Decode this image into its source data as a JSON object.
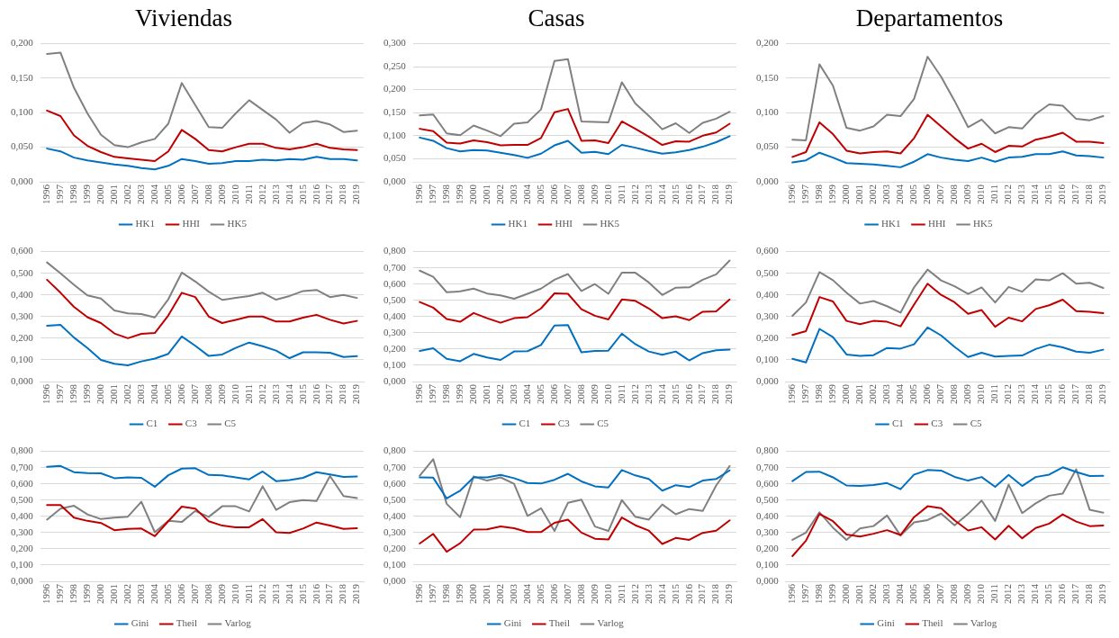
{
  "chart_data": [
    {
      "type": "line",
      "title": "Viviendas",
      "categories": [
        "1996",
        "1997",
        "1998",
        "1999",
        "2000",
        "2001",
        "2002",
        "2003",
        "2004",
        "2005",
        "2006",
        "2007",
        "2008",
        "2009",
        "2010",
        "2011",
        "2012",
        "2013",
        "2014",
        "2015",
        "2016",
        "2017",
        "2018",
        "2019"
      ],
      "ylim": [
        0,
        0.2
      ],
      "yticks": [
        {
          "value": 0,
          "label": "0,000"
        },
        {
          "value": 0.05,
          "label": "0,050"
        },
        {
          "value": 0.1,
          "label": "0,100"
        },
        {
          "value": 0.15,
          "label": "0,150"
        },
        {
          "value": 0.2,
          "label": "0,200"
        }
      ],
      "grid": "y",
      "legend": "bottom",
      "marker": "none",
      "series": [
        {
          "name": "HK1",
          "color": "#0070c0",
          "values": [
            0.048,
            0.044,
            0.035,
            0.031,
            0.028,
            0.025,
            0.023,
            0.02,
            0.018,
            0.023,
            0.033,
            0.03,
            0.026,
            0.027,
            0.03,
            0.03,
            0.032,
            0.031,
            0.033,
            0.032,
            0.036,
            0.033,
            0.033,
            0.031
          ]
        },
        {
          "name": "HHI",
          "color": "#c00000",
          "values": [
            0.103,
            0.095,
            0.067,
            0.052,
            0.043,
            0.036,
            0.034,
            0.032,
            0.03,
            0.044,
            0.075,
            0.062,
            0.046,
            0.044,
            0.05,
            0.055,
            0.055,
            0.049,
            0.047,
            0.05,
            0.055,
            0.049,
            0.047,
            0.046
          ]
        },
        {
          "name": "HK5",
          "color": "#808080",
          "values": [
            0.185,
            0.187,
            0.136,
            0.099,
            0.068,
            0.053,
            0.05,
            0.057,
            0.062,
            0.084,
            0.143,
            0.111,
            0.079,
            0.078,
            0.099,
            0.118,
            0.104,
            0.09,
            0.071,
            0.085,
            0.088,
            0.083,
            0.072,
            0.074
          ]
        }
      ]
    },
    {
      "type": "line",
      "title": "Casas",
      "categories": [
        "1996",
        "1997",
        "1998",
        "1999",
        "2000",
        "2001",
        "2002",
        "2003",
        "2004",
        "2005",
        "2006",
        "2007",
        "2008",
        "2009",
        "2010",
        "2011",
        "2012",
        "2013",
        "2014",
        "2015",
        "2016",
        "2017",
        "2018",
        "2019"
      ],
      "ylim": [
        0,
        0.3
      ],
      "yticks": [
        {
          "value": 0,
          "label": "0,000"
        },
        {
          "value": 0.05,
          "label": "0,050"
        },
        {
          "value": 0.1,
          "label": "0,100"
        },
        {
          "value": 0.15,
          "label": "0,150"
        },
        {
          "value": 0.2,
          "label": "0,200"
        },
        {
          "value": 0.25,
          "label": "0,250"
        },
        {
          "value": 0.3,
          "label": "0,300"
        }
      ],
      "grid": "y",
      "legend": "bottom",
      "marker": "none",
      "series": [
        {
          "name": "HK1",
          "color": "#0070c0",
          "values": [
            0.096,
            0.089,
            0.073,
            0.066,
            0.069,
            0.068,
            0.063,
            0.058,
            0.052,
            0.061,
            0.079,
            0.089,
            0.063,
            0.065,
            0.06,
            0.08,
            0.074,
            0.067,
            0.061,
            0.064,
            0.069,
            0.076,
            0.086,
            0.099
          ]
        },
        {
          "name": "HHI",
          "color": "#c00000",
          "values": [
            0.115,
            0.11,
            0.085,
            0.083,
            0.09,
            0.086,
            0.079,
            0.08,
            0.08,
            0.095,
            0.151,
            0.158,
            0.089,
            0.09,
            0.084,
            0.131,
            0.115,
            0.098,
            0.08,
            0.088,
            0.087,
            0.1,
            0.107,
            0.126
          ]
        },
        {
          "name": "HK5",
          "color": "#808080",
          "values": [
            0.144,
            0.146,
            0.105,
            0.101,
            0.122,
            0.111,
            0.099,
            0.126,
            0.129,
            0.157,
            0.262,
            0.266,
            0.131,
            0.13,
            0.129,
            0.216,
            0.17,
            0.143,
            0.114,
            0.127,
            0.106,
            0.128,
            0.137,
            0.152
          ]
        }
      ]
    },
    {
      "type": "line",
      "title": "Departamentos",
      "categories": [
        "1996",
        "1997",
        "1998",
        "1999",
        "2000",
        "2001",
        "2002",
        "2003",
        "2004",
        "2005",
        "2006",
        "2007",
        "2008",
        "2009",
        "2010",
        "2011",
        "2012",
        "2013",
        "2014",
        "2015",
        "2016",
        "2017",
        "2018",
        "2019"
      ],
      "ylim": [
        0,
        0.2
      ],
      "yticks": [
        {
          "value": 0,
          "label": "0,000"
        },
        {
          "value": 0.05,
          "label": "0,050"
        },
        {
          "value": 0.1,
          "label": "0,100"
        },
        {
          "value": 0.15,
          "label": "0,150"
        },
        {
          "value": 0.2,
          "label": "0,200"
        }
      ],
      "grid": "y",
      "legend": "bottom",
      "marker": "none",
      "series": [
        {
          "name": "HK1",
          "color": "#0070c0",
          "values": [
            0.028,
            0.031,
            0.042,
            0.035,
            0.027,
            0.026,
            0.025,
            0.023,
            0.021,
            0.029,
            0.04,
            0.035,
            0.032,
            0.03,
            0.035,
            0.029,
            0.035,
            0.036,
            0.04,
            0.04,
            0.044,
            0.038,
            0.037,
            0.035
          ]
        },
        {
          "name": "HHI",
          "color": "#c00000",
          "values": [
            0.036,
            0.043,
            0.086,
            0.069,
            0.045,
            0.041,
            0.043,
            0.044,
            0.041,
            0.063,
            0.097,
            0.08,
            0.063,
            0.048,
            0.055,
            0.043,
            0.052,
            0.051,
            0.061,
            0.065,
            0.071,
            0.058,
            0.058,
            0.056
          ]
        },
        {
          "name": "HK5",
          "color": "#808080",
          "values": [
            0.061,
            0.06,
            0.17,
            0.139,
            0.078,
            0.074,
            0.08,
            0.097,
            0.095,
            0.12,
            0.181,
            0.152,
            0.117,
            0.079,
            0.09,
            0.07,
            0.079,
            0.077,
            0.098,
            0.112,
            0.11,
            0.091,
            0.089,
            0.095
          ]
        }
      ]
    },
    {
      "type": "line",
      "categories": [
        "1996",
        "1997",
        "1998",
        "1999",
        "2000",
        "2001",
        "2002",
        "2003",
        "2004",
        "2005",
        "2006",
        "2007",
        "2008",
        "2009",
        "2010",
        "2011",
        "2012",
        "2013",
        "2014",
        "2015",
        "2016",
        "2017",
        "2018",
        "2019"
      ],
      "ylim": [
        0,
        0.6
      ],
      "yticks": [
        {
          "value": 0,
          "label": "0,000"
        },
        {
          "value": 0.1,
          "label": "0,100"
        },
        {
          "value": 0.2,
          "label": "0,200"
        },
        {
          "value": 0.3,
          "label": "0,300"
        },
        {
          "value": 0.4,
          "label": "0,400"
        },
        {
          "value": 0.5,
          "label": "0,500"
        },
        {
          "value": 0.6,
          "label": "0,600"
        }
      ],
      "grid": "y",
      "legend": "bottom",
      "marker": "none",
      "series": [
        {
          "name": "C1",
          "color": "#0070c0",
          "values": [
            0.258,
            0.262,
            0.203,
            0.155,
            0.1,
            0.082,
            0.075,
            0.093,
            0.106,
            0.128,
            0.208,
            0.165,
            0.118,
            0.125,
            0.155,
            0.18,
            0.163,
            0.143,
            0.108,
            0.135,
            0.135,
            0.133,
            0.113,
            0.117
          ]
        },
        {
          "name": "C3",
          "color": "#c00000",
          "values": [
            0.47,
            0.41,
            0.345,
            0.297,
            0.27,
            0.222,
            0.2,
            0.22,
            0.224,
            0.305,
            0.41,
            0.39,
            0.3,
            0.27,
            0.285,
            0.3,
            0.3,
            0.277,
            0.277,
            0.295,
            0.308,
            0.285,
            0.268,
            0.28
          ]
        },
        {
          "name": "C5",
          "color": "#808080",
          "values": [
            0.55,
            0.5,
            0.447,
            0.398,
            0.383,
            0.328,
            0.315,
            0.312,
            0.296,
            0.38,
            0.503,
            0.462,
            0.415,
            0.377,
            0.386,
            0.395,
            0.41,
            0.378,
            0.395,
            0.418,
            0.423,
            0.39,
            0.4,
            0.386
          ]
        }
      ]
    },
    {
      "type": "line",
      "categories": [
        "1996",
        "1997",
        "1998",
        "1999",
        "2000",
        "2001",
        "2002",
        "2003",
        "2004",
        "2005",
        "2006",
        "2007",
        "2008",
        "2009",
        "2010",
        "2011",
        "2012",
        "2013",
        "2014",
        "2015",
        "2016",
        "2017",
        "2018",
        "2019"
      ],
      "ylim": [
        0,
        0.8
      ],
      "yticks": [
        {
          "value": 0,
          "label": "0,000"
        },
        {
          "value": 0.1,
          "label": "0,100"
        },
        {
          "value": 0.2,
          "label": "0,200"
        },
        {
          "value": 0.3,
          "label": "0,300"
        },
        {
          "value": 0.4,
          "label": "0,400"
        },
        {
          "value": 0.5,
          "label": "0,500"
        },
        {
          "value": 0.6,
          "label": "0,600"
        },
        {
          "value": 0.7,
          "label": "0,700"
        },
        {
          "value": 0.8,
          "label": "0,800"
        }
      ],
      "grid": "y",
      "legend": "bottom",
      "marker": "none",
      "series": [
        {
          "name": "C1",
          "color": "#0070c0",
          "values": [
            0.188,
            0.205,
            0.14,
            0.125,
            0.17,
            0.148,
            0.133,
            0.185,
            0.187,
            0.225,
            0.345,
            0.348,
            0.18,
            0.188,
            0.19,
            0.295,
            0.23,
            0.185,
            0.165,
            0.185,
            0.13,
            0.175,
            0.192,
            0.197
          ]
        },
        {
          "name": "C3",
          "color": "#c00000",
          "values": [
            0.49,
            0.455,
            0.385,
            0.368,
            0.422,
            0.39,
            0.362,
            0.39,
            0.396,
            0.45,
            0.543,
            0.54,
            0.445,
            0.405,
            0.382,
            0.505,
            0.497,
            0.45,
            0.39,
            0.402,
            0.378,
            0.43,
            0.432,
            0.505
          ]
        },
        {
          "name": "C5",
          "color": "#808080",
          "values": [
            0.683,
            0.645,
            0.55,
            0.555,
            0.572,
            0.542,
            0.53,
            0.51,
            0.54,
            0.572,
            0.627,
            0.662,
            0.558,
            0.6,
            0.54,
            0.67,
            0.67,
            0.61,
            0.533,
            0.578,
            0.58,
            0.627,
            0.66,
            0.745
          ]
        }
      ]
    },
    {
      "type": "line",
      "categories": [
        "1996",
        "1997",
        "1998",
        "1999",
        "2000",
        "2001",
        "2002",
        "2003",
        "2004",
        "2005",
        "2006",
        "2007",
        "2008",
        "2009",
        "2010",
        "2011",
        "2012",
        "2013",
        "2014",
        "2015",
        "2016",
        "2017",
        "2018",
        "2019"
      ],
      "ylim": [
        0,
        0.6
      ],
      "yticks": [
        {
          "value": 0,
          "label": "0,000"
        },
        {
          "value": 0.1,
          "label": "0,100"
        },
        {
          "value": 0.2,
          "label": "0,200"
        },
        {
          "value": 0.3,
          "label": "0,300"
        },
        {
          "value": 0.4,
          "label": "0,400"
        },
        {
          "value": 0.5,
          "label": "0,500"
        },
        {
          "value": 0.6,
          "label": "0,600"
        }
      ],
      "grid": "y",
      "legend": "bottom",
      "marker": "none",
      "series": [
        {
          "name": "C1",
          "color": "#0070c0",
          "values": [
            0.105,
            0.088,
            0.243,
            0.205,
            0.125,
            0.118,
            0.122,
            0.155,
            0.152,
            0.172,
            0.25,
            0.213,
            0.16,
            0.113,
            0.133,
            0.115,
            0.118,
            0.12,
            0.15,
            0.17,
            0.158,
            0.138,
            0.133,
            0.147
          ]
        },
        {
          "name": "C3",
          "color": "#c00000",
          "values": [
            0.215,
            0.233,
            0.39,
            0.37,
            0.28,
            0.265,
            0.28,
            0.276,
            0.255,
            0.355,
            0.452,
            0.4,
            0.366,
            0.313,
            0.33,
            0.253,
            0.295,
            0.278,
            0.335,
            0.352,
            0.378,
            0.325,
            0.322,
            0.316
          ]
        },
        {
          "name": "C5",
          "color": "#808080",
          "values": [
            0.303,
            0.365,
            0.505,
            0.468,
            0.41,
            0.36,
            0.372,
            0.348,
            0.318,
            0.435,
            0.517,
            0.467,
            0.44,
            0.405,
            0.435,
            0.365,
            0.437,
            0.415,
            0.472,
            0.467,
            0.5,
            0.452,
            0.456,
            0.432
          ]
        }
      ]
    },
    {
      "type": "line",
      "categories": [
        "1996",
        "1997",
        "1998",
        "1999",
        "2000",
        "2001",
        "2002",
        "2003",
        "2004",
        "2005",
        "2006",
        "2007",
        "2008",
        "2009",
        "2010",
        "2011",
        "2012",
        "2013",
        "2014",
        "2015",
        "2016",
        "2017",
        "2018",
        "2019"
      ],
      "ylim": [
        0,
        0.8
      ],
      "yticks": [
        {
          "value": 0,
          "label": "0,000"
        },
        {
          "value": 0.1,
          "label": "0,100"
        },
        {
          "value": 0.2,
          "label": "0,200"
        },
        {
          "value": 0.3,
          "label": "0,300"
        },
        {
          "value": 0.4,
          "label": "0,400"
        },
        {
          "value": 0.5,
          "label": "0,500"
        },
        {
          "value": 0.6,
          "label": "0,600"
        },
        {
          "value": 0.7,
          "label": "0,700"
        },
        {
          "value": 0.8,
          "label": "0,800"
        }
      ],
      "grid": "y",
      "legend": "bottom",
      "marker": "none",
      "series": [
        {
          "name": "Gini",
          "color": "#0070c0",
          "values": [
            0.705,
            0.71,
            0.672,
            0.666,
            0.665,
            0.635,
            0.64,
            0.637,
            0.582,
            0.653,
            0.694,
            0.696,
            0.655,
            0.652,
            0.64,
            0.628,
            0.676,
            0.617,
            0.623,
            0.637,
            0.672,
            0.658,
            0.643,
            0.645
          ]
        },
        {
          "name": "Theil",
          "color": "#c00000",
          "values": [
            0.47,
            0.47,
            0.392,
            0.372,
            0.359,
            0.315,
            0.323,
            0.325,
            0.278,
            0.37,
            0.46,
            0.448,
            0.37,
            0.343,
            0.333,
            0.333,
            0.383,
            0.302,
            0.298,
            0.325,
            0.362,
            0.344,
            0.323,
            0.327
          ]
        },
        {
          "name": "Varlog",
          "color": "#808080",
          "values": [
            0.38,
            0.447,
            0.465,
            0.412,
            0.383,
            0.392,
            0.398,
            0.49,
            0.302,
            0.373,
            0.365,
            0.433,
            0.397,
            0.462,
            0.462,
            0.43,
            0.585,
            0.44,
            0.487,
            0.5,
            0.495,
            0.648,
            0.525,
            0.512
          ]
        }
      ]
    },
    {
      "type": "line",
      "categories": [
        "1996",
        "1997",
        "1998",
        "1999",
        "2000",
        "2001",
        "2002",
        "2003",
        "2004",
        "2005",
        "2006",
        "2007",
        "2008",
        "2009",
        "2010",
        "2011",
        "2012",
        "2013",
        "2014",
        "2015",
        "2016",
        "2017",
        "2018",
        "2019"
      ],
      "ylim": [
        0,
        0.8
      ],
      "yticks": [
        {
          "value": 0,
          "label": "0,000"
        },
        {
          "value": 0.1,
          "label": "0,100"
        },
        {
          "value": 0.2,
          "label": "0,200"
        },
        {
          "value": 0.3,
          "label": "0,300"
        },
        {
          "value": 0.4,
          "label": "0,400"
        },
        {
          "value": 0.5,
          "label": "0,500"
        },
        {
          "value": 0.6,
          "label": "0,600"
        },
        {
          "value": 0.7,
          "label": "0,700"
        },
        {
          "value": 0.8,
          "label": "0,800"
        }
      ],
      "grid": "y",
      "legend": "bottom",
      "marker": "none",
      "series": [
        {
          "name": "Gini",
          "color": "#0070c0",
          "values": [
            0.64,
            0.638,
            0.51,
            0.558,
            0.64,
            0.64,
            0.655,
            0.635,
            0.605,
            0.602,
            0.625,
            0.662,
            0.615,
            0.585,
            0.578,
            0.685,
            0.652,
            0.63,
            0.558,
            0.592,
            0.58,
            0.62,
            0.63,
            0.683
          ]
        },
        {
          "name": "Theil",
          "color": "#c00000",
          "values": [
            0.233,
            0.292,
            0.182,
            0.235,
            0.318,
            0.32,
            0.338,
            0.327,
            0.303,
            0.303,
            0.36,
            0.38,
            0.3,
            0.262,
            0.257,
            0.393,
            0.345,
            0.312,
            0.23,
            0.267,
            0.255,
            0.298,
            0.312,
            0.375
          ]
        },
        {
          "name": "Varlog",
          "color": "#808080",
          "values": [
            0.65,
            0.752,
            0.477,
            0.395,
            0.645,
            0.62,
            0.64,
            0.6,
            0.403,
            0.45,
            0.31,
            0.483,
            0.503,
            0.337,
            0.31,
            0.5,
            0.397,
            0.38,
            0.473,
            0.413,
            0.445,
            0.433,
            0.59,
            0.71
          ]
        }
      ]
    },
    {
      "type": "line",
      "categories": [
        "1996",
        "1997",
        "1998",
        "1999",
        "2000",
        "2001",
        "2002",
        "2003",
        "2004",
        "2005",
        "2006",
        "2007",
        "2008",
        "2009",
        "2010",
        "2011",
        "2012",
        "2013",
        "2014",
        "2015",
        "2016",
        "2017",
        "2018",
        "2019"
      ],
      "ylim": [
        0,
        0.8
      ],
      "yticks": [
        {
          "value": 0,
          "label": "0,000"
        },
        {
          "value": 0.1,
          "label": "0,100"
        },
        {
          "value": 0.2,
          "label": "0,200"
        },
        {
          "value": 0.3,
          "label": "0,300"
        },
        {
          "value": 0.4,
          "label": "0,400"
        },
        {
          "value": 0.5,
          "label": "0,500"
        },
        {
          "value": 0.6,
          "label": "0,600"
        },
        {
          "value": 0.7,
          "label": "0,700"
        },
        {
          "value": 0.8,
          "label": "0,800"
        }
      ],
      "grid": "y",
      "legend": "bottom",
      "marker": "none",
      "series": [
        {
          "name": "Gini",
          "color": "#0070c0",
          "values": [
            0.617,
            0.673,
            0.675,
            0.64,
            0.59,
            0.587,
            0.593,
            0.605,
            0.567,
            0.657,
            0.685,
            0.682,
            0.643,
            0.62,
            0.642,
            0.582,
            0.655,
            0.587,
            0.642,
            0.657,
            0.702,
            0.673,
            0.648,
            0.65
          ]
        },
        {
          "name": "Theil",
          "color": "#c00000",
          "values": [
            0.155,
            0.25,
            0.415,
            0.37,
            0.288,
            0.276,
            0.293,
            0.315,
            0.285,
            0.395,
            0.462,
            0.45,
            0.375,
            0.313,
            0.333,
            0.258,
            0.342,
            0.265,
            0.328,
            0.355,
            0.412,
            0.368,
            0.34,
            0.343
          ]
        },
        {
          "name": "Varlog",
          "color": "#808080",
          "values": [
            0.255,
            0.3,
            0.425,
            0.33,
            0.255,
            0.325,
            0.34,
            0.405,
            0.282,
            0.363,
            0.377,
            0.417,
            0.345,
            0.415,
            0.497,
            0.372,
            0.595,
            0.42,
            0.48,
            0.527,
            0.54,
            0.69,
            0.44,
            0.423
          ]
        }
      ]
    }
  ]
}
